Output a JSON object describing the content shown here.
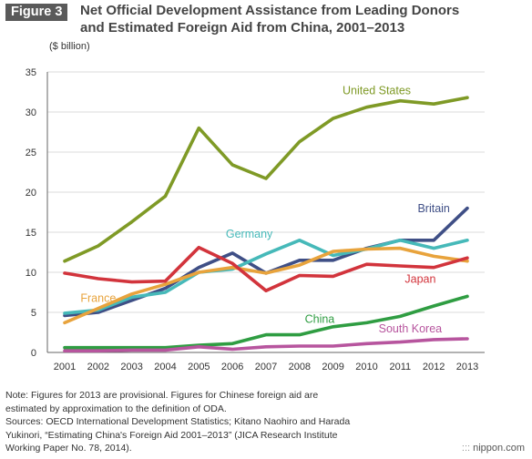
{
  "header": {
    "figure_label": "Figure 3",
    "title_line1": "Net Official Development Assistance from Leading Donors",
    "title_line2": "and Estimated Foreign Aid from China, 2001–2013"
  },
  "notes": [
    "Note: Figures for 2013 are provisional. Figures for Chinese foreign aid are",
    "estimated by approximation to the definition of ODA.",
    "Sources: OECD International Development Statistics; Kitano Naohiro and Harada",
    "Yukinori, “Estimating China's Foreign Aid 2001–2013” (JICA Research Institute",
    "Working Paper No. 78, 2014)."
  ],
  "brand": {
    "mark": "nippon.com"
  },
  "chart_data": {
    "type": "line",
    "title": "Net Official Development Assistance from Leading Donors and Estimated Foreign Aid from China, 2001–2013",
    "ylabel": "($ billion)",
    "xlabel": "",
    "x": [
      2001,
      2002,
      2003,
      2004,
      2005,
      2006,
      2007,
      2008,
      2009,
      2010,
      2011,
      2012,
      2013
    ],
    "ylim": [
      0,
      35
    ],
    "yticks": [
      0,
      5,
      10,
      15,
      20,
      25,
      30,
      35
    ],
    "grid": "horizontal",
    "series": [
      {
        "name": "United States",
        "color": "#7f9a26",
        "values": [
          11.4,
          13.3,
          16.3,
          19.5,
          28.0,
          23.4,
          21.7,
          26.3,
          29.2,
          30.6,
          31.4,
          31.0,
          31.8
        ]
      },
      {
        "name": "Britain",
        "color": "#3f4f86",
        "values": [
          4.6,
          5.0,
          6.5,
          8.0,
          10.6,
          12.4,
          9.9,
          11.5,
          11.5,
          13.0,
          14.0,
          14.0,
          18.0
        ]
      },
      {
        "name": "Germany",
        "color": "#46b9b9",
        "values": [
          4.9,
          5.3,
          6.9,
          7.5,
          10.0,
          10.4,
          12.3,
          14.0,
          12.1,
          12.9,
          14.0,
          13.0,
          14.0
        ]
      },
      {
        "name": "France",
        "color": "#e8a33c",
        "values": [
          3.7,
          5.5,
          7.3,
          8.5,
          10.0,
          10.6,
          9.9,
          10.9,
          12.6,
          12.9,
          13.0,
          12.0,
          11.4
        ]
      },
      {
        "name": "Japan",
        "color": "#d2343c",
        "values": [
          9.9,
          9.2,
          8.8,
          8.9,
          13.1,
          11.1,
          7.7,
          9.6,
          9.5,
          11.0,
          10.8,
          10.6,
          11.8
        ]
      },
      {
        "name": "China",
        "color": "#2f9d42",
        "values": [
          0.6,
          0.6,
          0.6,
          0.6,
          0.9,
          1.1,
          2.2,
          2.2,
          3.2,
          3.7,
          4.5,
          5.8,
          7.0
        ]
      },
      {
        "name": "South Korea",
        "color": "#b7559e",
        "values": [
          0.2,
          0.2,
          0.3,
          0.3,
          0.7,
          0.4,
          0.7,
          0.8,
          0.8,
          1.1,
          1.3,
          1.6,
          1.7
        ]
      }
    ],
    "labels": [
      {
        "series": "United States",
        "x": 2010.3,
        "y": 32.2
      },
      {
        "series": "Britain",
        "x": 2012.0,
        "y": 17.5
      },
      {
        "series": "Germany",
        "x": 2006.5,
        "y": 14.3
      },
      {
        "series": "France",
        "x": 2002.0,
        "y": 6.3
      },
      {
        "series": "Japan",
        "x": 2011.6,
        "y": 8.7
      },
      {
        "series": "China",
        "x": 2008.6,
        "y": 3.7
      },
      {
        "series": "South Korea",
        "x": 2011.3,
        "y": 2.5
      }
    ]
  }
}
